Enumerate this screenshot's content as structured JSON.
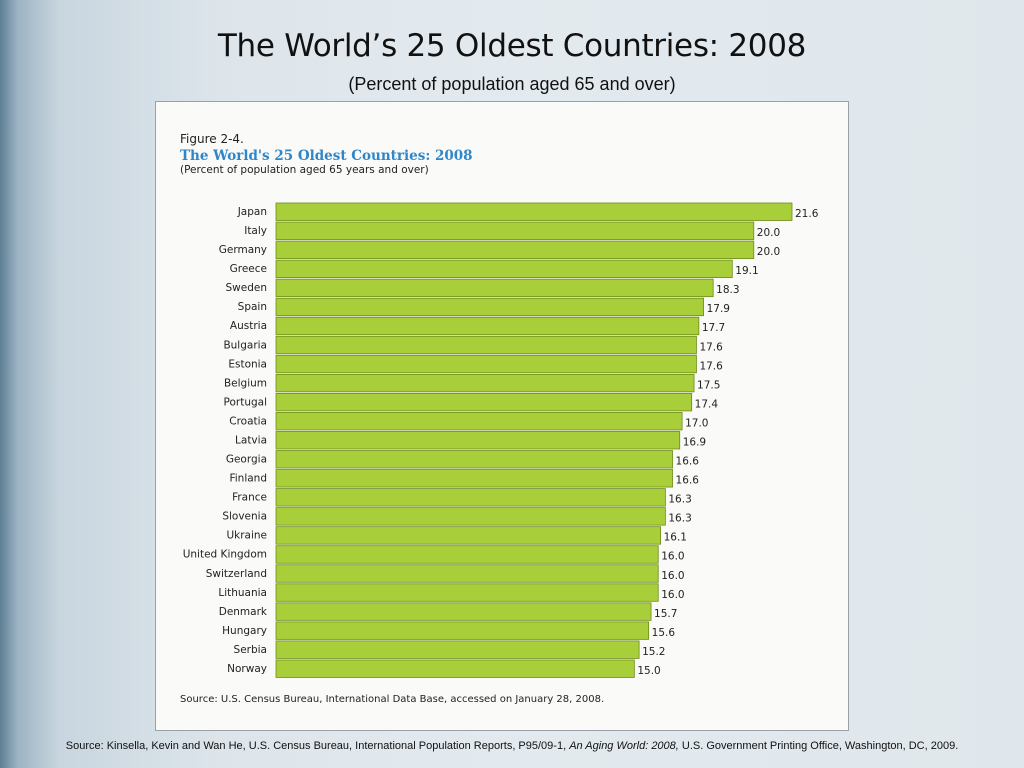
{
  "slide": {
    "title": "The World’s 25 Oldest Countries: 2008",
    "subtitle": "(Percent of population aged 65 and over)"
  },
  "figure": {
    "label": "Figure 2-4.",
    "title": "The World's 25 Oldest Countries: 2008",
    "subtitle": "(Percent of population aged 65 years and over)",
    "source": "Source: U.S. Census Bureau, International Data Base, accessed on January 28, 2008."
  },
  "source_line": {
    "prefix": "Source: Kinsella, Kevin and Wan He, U.S. Census Bureau, International Population Reports, P95/09-1, ",
    "title": "An Aging World: 2008,",
    "suffix": " U.S. Government Printing Office, Washington, DC, 2009."
  },
  "colors": {
    "bar": "#a8cf3a",
    "bar_border": "#6e8a1c",
    "figure_title": "#2f86c8"
  },
  "chart_data": {
    "type": "bar",
    "orientation": "horizontal",
    "title": "The World's 25 Oldest Countries: 2008",
    "subtitle": "(Percent of population aged 65 years and over)",
    "categories": [
      "Japan",
      "Italy",
      "Germany",
      "Greece",
      "Sweden",
      "Spain",
      "Austria",
      "Bulgaria",
      "Estonia",
      "Belgium",
      "Portugal",
      "Croatia",
      "Latvia",
      "Georgia",
      "Finland",
      "France",
      "Slovenia",
      "Ukraine",
      "United Kingdom",
      "Switzerland",
      "Lithuania",
      "Denmark",
      "Hungary",
      "Serbia",
      "Norway"
    ],
    "values": [
      21.6,
      20.0,
      20.0,
      19.1,
      18.3,
      17.9,
      17.7,
      17.6,
      17.6,
      17.5,
      17.4,
      17.0,
      16.9,
      16.6,
      16.6,
      16.3,
      16.3,
      16.1,
      16.0,
      16.0,
      16.0,
      15.7,
      15.6,
      15.2,
      15.0
    ],
    "value_labels": [
      "21.6",
      "20.0",
      "20.0",
      "19.1",
      "18.3",
      "17.9",
      "17.7",
      "17.6",
      "17.6",
      "17.5",
      "17.4",
      "17.0",
      "16.9",
      "16.6",
      "16.6",
      "16.3",
      "16.3",
      "16.1",
      "16.0",
      "16.0",
      "16.0",
      "15.7",
      "15.6",
      "15.2",
      "15.0"
    ],
    "xlim": [
      0,
      21.6
    ],
    "grid": false,
    "legend": "none"
  }
}
